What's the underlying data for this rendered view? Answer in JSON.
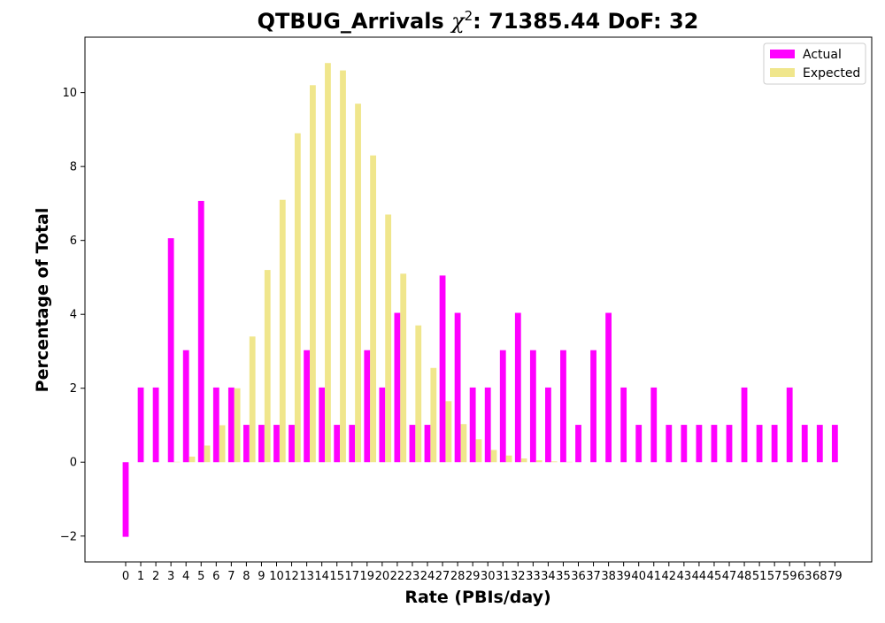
{
  "chart_data": {
    "type": "bar",
    "title_prefix": "QTBUG_Arrivals ",
    "title_chi": "χ",
    "title_sup": "2",
    "title_suffix": ": 71385.44 DoF: 32",
    "xlabel": "Rate (PBIs/day)",
    "ylabel": "Percentage of Total",
    "ylim": [
      -2.7,
      11.5
    ],
    "yticks": [
      -2,
      0,
      2,
      4,
      6,
      8,
      10
    ],
    "ytick_labels": [
      "−2",
      "0",
      "2",
      "4",
      "6",
      "8",
      "10"
    ],
    "legend_position": "top-right",
    "grid": false,
    "categories": [
      "0",
      "1",
      "2",
      "3",
      "4",
      "5",
      "6",
      "7",
      "8",
      "9",
      "10",
      "12",
      "13",
      "14",
      "15",
      "17",
      "19",
      "20",
      "22",
      "23",
      "24",
      "27",
      "28",
      "29",
      "30",
      "31",
      "32",
      "33",
      "34",
      "35",
      "36",
      "37",
      "38",
      "39",
      "40",
      "41",
      "42",
      "43",
      "44",
      "45",
      "47",
      "48",
      "51",
      "57",
      "59",
      "63",
      "68",
      "79"
    ],
    "series": [
      {
        "name": "Actual",
        "color": "#ff00ff",
        "values": [
          -2.02,
          2.02,
          2.02,
          6.06,
          3.03,
          7.07,
          2.02,
          2.02,
          1.01,
          1.01,
          1.01,
          1.01,
          3.03,
          2.02,
          1.01,
          1.01,
          3.03,
          2.02,
          4.04,
          1.01,
          1.01,
          5.05,
          4.04,
          2.02,
          2.02,
          3.03,
          4.04,
          3.03,
          2.02,
          3.03,
          1.01,
          3.03,
          4.04,
          2.02,
          1.01,
          2.02,
          1.01,
          1.01,
          1.01,
          1.01,
          1.01,
          2.02,
          1.01,
          1.01,
          2.02,
          1.01,
          1.01,
          1.01
        ]
      },
      {
        "name": "Expected",
        "color": "#f0e68c",
        "values": [
          0.0,
          0.0,
          0.0,
          0.01,
          0.15,
          0.45,
          1.0,
          2.0,
          3.4,
          5.2,
          7.1,
          8.9,
          10.2,
          10.8,
          10.6,
          9.7,
          8.3,
          6.7,
          5.1,
          3.7,
          2.55,
          1.65,
          1.03,
          0.62,
          0.33,
          0.18,
          0.1,
          0.05,
          0.02,
          0.01,
          0.0,
          0.0,
          0.0,
          0.0,
          0.0,
          0.0,
          0.0,
          0.0,
          0.0,
          0.0,
          0.0,
          0.0,
          0.0,
          0.0,
          0.0,
          0.0,
          0.0,
          0.0
        ]
      }
    ]
  }
}
